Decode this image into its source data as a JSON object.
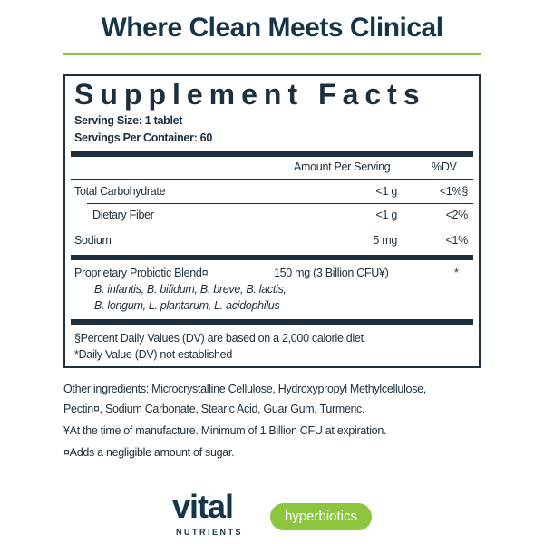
{
  "header": {
    "title": "Where Clean Meets Clinical"
  },
  "facts": {
    "title": "Supplement Facts",
    "serving_size": "Serving Size: 1 tablet",
    "servings_per_container": "Servings Per Container: 60",
    "columns": [
      "Amount Per Serving",
      "%DV"
    ],
    "rows": [
      {
        "name": "Total Carbohydrate",
        "amount": "<1 g",
        "dv": "<1%§"
      },
      {
        "name": "Dietary Fiber",
        "amount": "<1 g",
        "dv": "<2%"
      },
      {
        "name": "Sodium",
        "amount": "5 mg",
        "dv": "<1%"
      }
    ],
    "blend": {
      "name": "Proprietary Probiotic Blend¤",
      "amount": "150 mg (3 Billion CFU¥)",
      "dv": "*",
      "ingredients": [
        "B. infantis, B. bifidum, B. breve, B. lactis,",
        "B. longum, L. plantarum, L. acidophilus"
      ]
    },
    "footnotes": [
      "§Percent Daily Values (DV) are based on a 2,000 calorie diet",
      "*Daily Value (DV) not established"
    ]
  },
  "other_ingredients": [
    "Other ingredients: Microcrystalline Cellulose, Hydroxypropyl Methylcellulose,",
    "Pectin¤, Sodium Carbonate, Stearic Acid, Guar Gum, Turmeric."
  ],
  "notes": [
    "¥At the time of manufacture. Minimum of 1 Billion CFU at expiration.",
    "¤Adds a negligible amount of sugar."
  ],
  "brands": {
    "vital": "vital",
    "vital_sub": "NUTRIENTS",
    "hyperbiotics": "hyperbiotics"
  }
}
